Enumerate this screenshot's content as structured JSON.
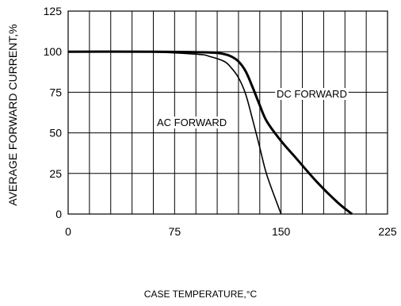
{
  "chart_data": {
    "type": "line",
    "title": "",
    "xlabel": "CASE TEMPERATURE,°C",
    "ylabel": "AVERAGE FORWARD CURRENT,%",
    "xlim": [
      0,
      225
    ],
    "ylim": [
      0,
      125
    ],
    "x_ticks": [
      "0",
      "75",
      "150",
      "225"
    ],
    "y_ticks": [
      "0",
      "25",
      "50",
      "75",
      "100",
      "125"
    ],
    "grid": true,
    "series": [
      {
        "name": "DC FORWARD",
        "label": "DC FORWARD",
        "x": [
          0,
          60,
          100,
          110,
          115,
          120,
          125,
          130,
          135,
          140,
          150,
          160,
          175,
          190,
          200
        ],
        "y": [
          100,
          100,
          99.5,
          98.5,
          97,
          94,
          88,
          78,
          67,
          57,
          45,
          35,
          20,
          7,
          0
        ]
      },
      {
        "name": "AC FORWARD",
        "label": "AC FORWARD",
        "x": [
          0,
          50,
          90,
          100,
          110,
          115,
          120,
          125,
          130,
          135,
          140,
          150
        ],
        "y": [
          100,
          100,
          98.5,
          97,
          94,
          90,
          84,
          74,
          58,
          41,
          24,
          0
        ]
      }
    ]
  }
}
